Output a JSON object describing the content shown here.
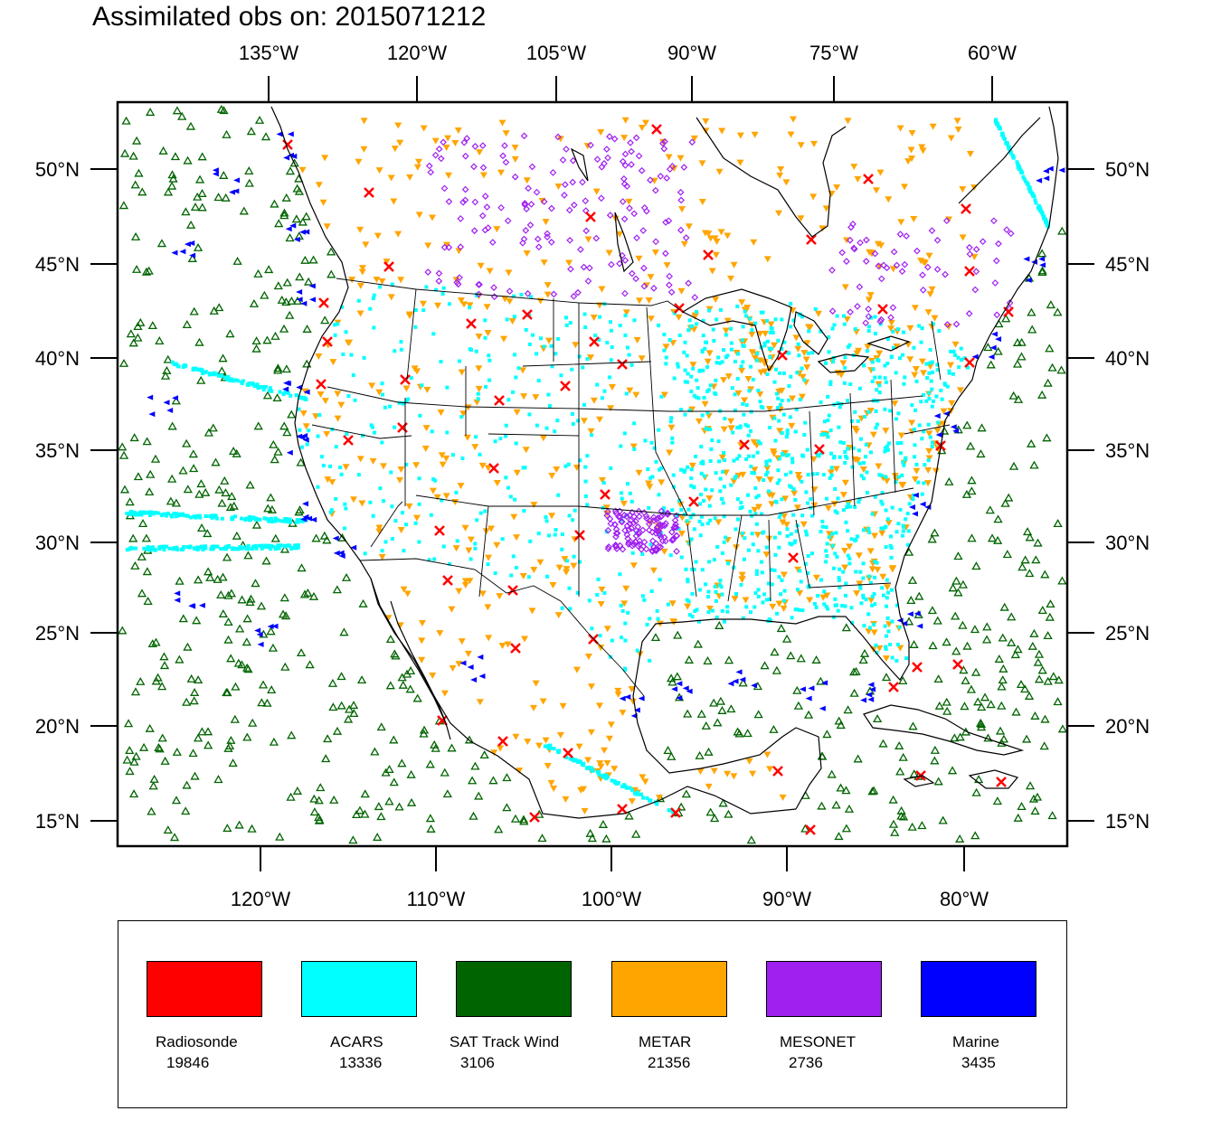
{
  "title": "Assimilated obs on: 2015071212",
  "map": {
    "top_lon_labels": [
      "135°W",
      "120°W",
      "105°W",
      "90°W",
      "75°W",
      "60°W"
    ],
    "bottom_lon_labels": [
      "120°W",
      "110°W",
      "100°W",
      "90°W",
      "80°W"
    ],
    "lat_labels": [
      "50°N",
      "45°N",
      "40°N",
      "35°N",
      "30°N",
      "25°N",
      "20°N",
      "15°N"
    ]
  },
  "legend": [
    {
      "name": "Radiosonde",
      "count": "19846",
      "color": "#ff0000",
      "marker": "x-icon"
    },
    {
      "name": "ACARS",
      "count": "13336",
      "color": "#00ffff",
      "marker": "square-icon"
    },
    {
      "name": "SAT Track Wind",
      "count": "3106",
      "color": "#006400",
      "marker": "triangle-up-icon"
    },
    {
      "name": "METAR",
      "count": "21356",
      "color": "#ffa500",
      "marker": "triangle-down-icon"
    },
    {
      "name": "MESONET",
      "count": "2736",
      "color": "#a020f0",
      "marker": "diamond-icon"
    },
    {
      "name": "Marine",
      "count": "3435",
      "color": "#0000ff",
      "marker": "triangle-left-icon"
    }
  ]
}
